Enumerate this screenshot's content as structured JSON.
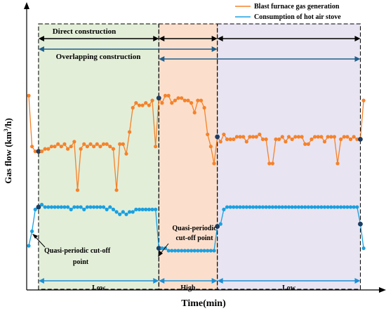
{
  "chart_data": {
    "type": "line",
    "xlabel": "Time(min)",
    "ylabel_main": "Gas flow (km",
    "ylabel_sup": "3",
    "ylabel_tail": "/h)",
    "legend_position": "top-right",
    "legend": [
      {
        "name": "Blast furnace gas generation",
        "color": "#f5822a"
      },
      {
        "name": "Consumption of hot air stove",
        "color": "#1aa0e0"
      }
    ],
    "regions": [
      {
        "name": "Low",
        "x0": 3,
        "x1": 40,
        "color": "#e3eed8"
      },
      {
        "name": "High",
        "x0": 40,
        "x1": 58,
        "color": "#fbdfcc"
      },
      {
        "name": "Low",
        "x0": 58,
        "x1": 102,
        "color": "#e9e4f1"
      }
    ],
    "construction": {
      "direct": "Direct construction",
      "overlapping": "Overlapping  construction"
    },
    "annotations": {
      "cutoff_left_1": "Quasi-periodic cut-off",
      "cutoff_left_2": "point",
      "cutoff_mid_1": "Quasi-periodic",
      "cutoff_mid_2": "cut-off point"
    },
    "xlim": [
      0,
      106
    ],
    "ylim": [
      0,
      100
    ],
    "series": [
      {
        "name": "Blast furnace gas generation",
        "color": "#f5822a",
        "x": [
          0,
          1,
          2,
          3,
          4,
          5,
          6,
          7,
          8,
          9,
          10,
          11,
          12,
          13,
          14,
          15,
          16,
          17,
          18,
          19,
          20,
          21,
          22,
          23,
          24,
          25,
          26,
          27,
          28,
          29,
          30,
          31,
          32,
          33,
          34,
          35,
          36,
          37,
          38,
          39,
          40,
          41,
          42,
          43,
          44,
          45,
          46,
          47,
          48,
          49,
          50,
          51,
          52,
          53,
          54,
          55,
          56,
          57,
          58,
          59,
          60,
          61,
          62,
          63,
          64,
          65,
          66,
          67,
          68,
          69,
          70,
          71,
          72,
          73,
          74,
          75,
          76,
          77,
          78,
          79,
          80,
          81,
          82,
          83,
          84,
          85,
          86,
          87,
          88,
          89,
          90,
          91,
          92,
          93,
          94,
          95,
          96,
          97,
          98,
          99,
          100,
          101,
          102,
          103
        ],
        "values": [
          75,
          54,
          52,
          52,
          52,
          53,
          53,
          54,
          54,
          55,
          54,
          55,
          53,
          54,
          56,
          36,
          53,
          55,
          54,
          55,
          54,
          55,
          54,
          55,
          55,
          54,
          53,
          36,
          55,
          55,
          51,
          60,
          70,
          72,
          71,
          71,
          72,
          71,
          73,
          54,
          74,
          72,
          75,
          75,
          72,
          73,
          74,
          74,
          73,
          73,
          72,
          68,
          73,
          73,
          70,
          59,
          54,
          47,
          58,
          56,
          59,
          57,
          57,
          57,
          58,
          58,
          58,
          56,
          58,
          58,
          58,
          59,
          57,
          57,
          47,
          47,
          57,
          57,
          58,
          56,
          58,
          57,
          58,
          58,
          58,
          55,
          55,
          57,
          58,
          58,
          58,
          56,
          58,
          58,
          58,
          47,
          57,
          58,
          58,
          57,
          58,
          57,
          57,
          73
        ]
      },
      {
        "name": "Consumption of hot air stove",
        "color": "#1aa0e0",
        "x": [
          0,
          1,
          2,
          3,
          4,
          5,
          6,
          7,
          8,
          9,
          10,
          11,
          12,
          13,
          14,
          15,
          16,
          17,
          18,
          19,
          20,
          21,
          22,
          23,
          24,
          25,
          26,
          27,
          28,
          29,
          30,
          31,
          32,
          33,
          34,
          35,
          36,
          37,
          38,
          39,
          40,
          41,
          42,
          43,
          44,
          45,
          46,
          47,
          48,
          49,
          50,
          51,
          52,
          53,
          54,
          55,
          56,
          57,
          58,
          59,
          60,
          61,
          62,
          63,
          64,
          65,
          66,
          67,
          68,
          69,
          70,
          71,
          72,
          73,
          74,
          75,
          76,
          77,
          78,
          79,
          80,
          81,
          82,
          83,
          84,
          85,
          86,
          87,
          88,
          89,
          90,
          91,
          92,
          93,
          94,
          95,
          96,
          97,
          98,
          99,
          100,
          101,
          102,
          103
        ],
        "values": [
          13,
          19,
          28,
          29,
          30,
          29,
          29,
          29,
          29,
          29,
          29,
          29,
          29,
          28,
          29,
          29,
          29,
          28,
          29,
          29,
          29,
          29,
          29,
          29,
          28,
          29,
          28,
          27,
          26,
          27,
          26,
          27,
          27,
          28,
          28,
          28,
          28,
          28,
          28,
          28,
          12,
          12,
          12,
          11,
          11,
          11,
          11,
          11,
          11,
          11,
          11,
          11,
          11,
          11,
          11,
          11,
          11,
          11,
          21,
          22,
          28,
          29,
          29,
          29,
          29,
          29,
          29,
          29,
          29,
          29,
          29,
          29,
          29,
          29,
          29,
          29,
          29,
          29,
          29,
          29,
          29,
          29,
          29,
          29,
          29,
          29,
          29,
          29,
          29,
          29,
          29,
          29,
          29,
          29,
          29,
          29,
          29,
          29,
          29,
          29,
          29,
          29,
          22,
          12
        ]
      }
    ]
  }
}
